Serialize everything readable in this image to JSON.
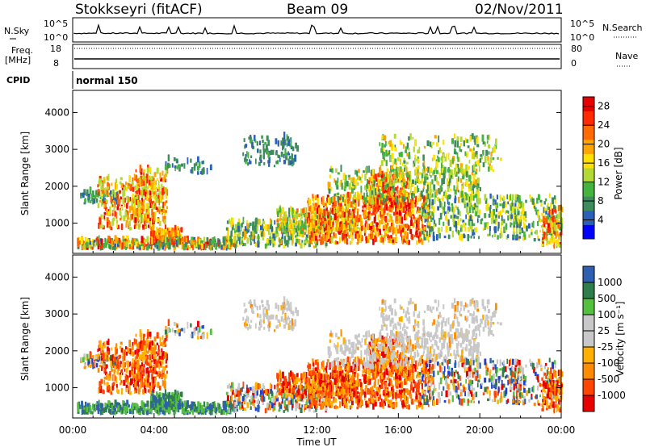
{
  "header": {
    "station": "Stokkseyri (fitACF)",
    "beam": "Beam 09",
    "date": "02/Nov/2011"
  },
  "side_labels": {
    "nsky": "N.Sky",
    "nsearch": "N.Search",
    "freq": "Freq.",
    "freq_unit": "[MHz]",
    "nave": "Nave",
    "cpid": "CPID",
    "cpid_value": "normal 150"
  },
  "colors": {
    "power_scale": [
      "#0000ff",
      "#2b5fb8",
      "#3d8c5c",
      "#46b340",
      "#b3d934",
      "#ffe000",
      "#ffa500",
      "#ff6a00",
      "#ff2a00",
      "#e60000"
    ],
    "velocity_scale": [
      "#e60000",
      "#ff4500",
      "#ff8c00",
      "#ffb000",
      "#c8c8c8",
      "#c8c8c8",
      "#55c040",
      "#2e7d4a",
      "#2e5fb0",
      "#1f3fd0"
    ],
    "ground_scatter": "#c0c0c0"
  },
  "chart_data": [
    {
      "type": "line",
      "name": "nsky-nsearch",
      "left_label": "N.Sky",
      "right_label": "N.Search",
      "left_ticks": [
        "10^5",
        "10^0"
      ],
      "right_ticks": [
        "10^5",
        "10^0"
      ]
    },
    {
      "type": "line",
      "name": "freq-nave",
      "left_label": "Freq. [MHz]",
      "right_label": "Nave",
      "left_ticks": [
        18,
        8
      ],
      "right_ticks": [
        80,
        0
      ]
    },
    {
      "type": "heatmap",
      "name": "power",
      "ylabel": "Slant Range [km]",
      "yticks": [
        1000,
        2000,
        3000,
        4000
      ],
      "ylim": [
        180,
        4600
      ],
      "xlim": [
        0,
        24
      ],
      "colorbar_label": "Power [dB]",
      "colorbar_ticks": [
        4,
        8,
        12,
        16,
        20,
        24,
        28
      ],
      "colorbar_range": [
        0,
        30
      ]
    },
    {
      "type": "heatmap",
      "name": "velocity",
      "ylabel": "Slant Range [km]",
      "yticks": [
        1000,
        2000,
        3000,
        4000
      ],
      "ylim": [
        180,
        4600
      ],
      "xlim": [
        0,
        24
      ],
      "xlabel": "Time UT",
      "xticks": [
        "00:00",
        "04:00",
        "08:00",
        "12:00",
        "16:00",
        "20:00",
        "00:00"
      ],
      "colorbar_label": "Velocity [m s⁻¹]",
      "colorbar_ticks": [
        1000,
        500,
        100,
        25,
        -25,
        -100,
        -500,
        -1000
      ]
    }
  ]
}
